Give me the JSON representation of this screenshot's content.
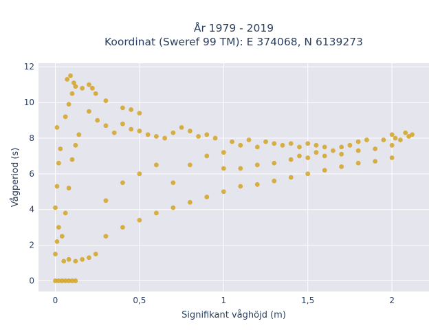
{
  "chart_data": {
    "type": "scatter",
    "title_line1": "År 1979 - 2019",
    "title_line2": "Koordinat (Sweref 99 TM): E 374068, N 6139273",
    "xlabel": "Signifikant våghöjd (m)",
    "ylabel": "Vågperiod (s)",
    "xlim": [
      -0.1,
      2.22
    ],
    "ylim": [
      -0.6,
      12.2
    ],
    "x_ticks": [
      0,
      0.5,
      1,
      1.5,
      2
    ],
    "x_tick_labels": [
      "0",
      "0,5",
      "1",
      "1,5",
      "2"
    ],
    "y_ticks": [
      0,
      2,
      4,
      6,
      8,
      10,
      12
    ],
    "y_tick_labels": [
      "0",
      "2",
      "4",
      "6",
      "8",
      "10",
      "12"
    ],
    "grid": true,
    "colors": {
      "marker": "#d4a321",
      "plot_bg": "#e5e5ee",
      "grid": "#ffffff",
      "text": "#2a3f5f"
    },
    "points": [
      [
        0.0,
        0.0
      ],
      [
        0.02,
        0.0
      ],
      [
        0.04,
        0.0
      ],
      [
        0.06,
        0.0
      ],
      [
        0.08,
        0.0
      ],
      [
        0.1,
        0.0
      ],
      [
        0.12,
        0.0
      ],
      [
        0.0,
        1.5
      ],
      [
        0.01,
        2.2
      ],
      [
        0.02,
        3.0
      ],
      [
        0.0,
        4.1
      ],
      [
        0.01,
        5.3
      ],
      [
        0.02,
        6.6
      ],
      [
        0.01,
        8.6
      ],
      [
        0.03,
        7.4
      ],
      [
        0.05,
        1.1
      ],
      [
        0.08,
        1.2
      ],
      [
        0.12,
        1.1
      ],
      [
        0.16,
        1.2
      ],
      [
        0.2,
        1.3
      ],
      [
        0.24,
        1.5
      ],
      [
        0.04,
        2.5
      ],
      [
        0.06,
        3.8
      ],
      [
        0.08,
        5.2
      ],
      [
        0.1,
        6.8
      ],
      [
        0.12,
        7.6
      ],
      [
        0.14,
        8.2
      ],
      [
        0.06,
        9.2
      ],
      [
        0.08,
        9.9
      ],
      [
        0.1,
        10.5
      ],
      [
        0.12,
        10.9
      ],
      [
        0.07,
        11.3
      ],
      [
        0.09,
        11.5
      ],
      [
        0.11,
        11.1
      ],
      [
        0.16,
        10.8
      ],
      [
        0.2,
        11.0
      ],
      [
        0.22,
        10.8
      ],
      [
        0.24,
        10.5
      ],
      [
        0.3,
        10.1
      ],
      [
        0.4,
        9.7
      ],
      [
        0.45,
        9.6
      ],
      [
        0.5,
        9.4
      ],
      [
        0.2,
        9.5
      ],
      [
        0.25,
        9.0
      ],
      [
        0.3,
        8.7
      ],
      [
        0.35,
        8.3
      ],
      [
        0.4,
        8.8
      ],
      [
        0.45,
        8.5
      ],
      [
        0.5,
        8.4
      ],
      [
        0.55,
        8.2
      ],
      [
        0.6,
        8.1
      ],
      [
        0.65,
        8.0
      ],
      [
        0.7,
        8.3
      ],
      [
        0.75,
        8.6
      ],
      [
        0.8,
        8.4
      ],
      [
        0.85,
        8.1
      ],
      [
        0.9,
        8.2
      ],
      [
        0.95,
        8.0
      ],
      [
        0.3,
        2.5
      ],
      [
        0.4,
        3.0
      ],
      [
        0.5,
        3.4
      ],
      [
        0.6,
        3.8
      ],
      [
        0.7,
        4.1
      ],
      [
        0.8,
        4.4
      ],
      [
        0.9,
        4.7
      ],
      [
        1.0,
        5.0
      ],
      [
        0.3,
        4.5
      ],
      [
        0.4,
        5.5
      ],
      [
        0.5,
        6.0
      ],
      [
        0.6,
        6.5
      ],
      [
        0.7,
        5.5
      ],
      [
        0.8,
        6.5
      ],
      [
        0.9,
        7.0
      ],
      [
        1.0,
        6.3
      ],
      [
        1.0,
        7.2
      ],
      [
        1.05,
        7.8
      ],
      [
        1.1,
        7.6
      ],
      [
        1.15,
        7.9
      ],
      [
        1.2,
        7.5
      ],
      [
        1.25,
        7.8
      ],
      [
        1.3,
        7.7
      ],
      [
        1.35,
        7.6
      ],
      [
        1.4,
        7.7
      ],
      [
        1.45,
        7.5
      ],
      [
        1.5,
        7.7
      ],
      [
        1.55,
        7.6
      ],
      [
        1.6,
        7.5
      ],
      [
        1.1,
        5.3
      ],
      [
        1.2,
        5.4
      ],
      [
        1.3,
        5.6
      ],
      [
        1.4,
        5.8
      ],
      [
        1.5,
        6.0
      ],
      [
        1.6,
        6.2
      ],
      [
        1.7,
        6.4
      ],
      [
        1.8,
        6.6
      ],
      [
        1.9,
        6.7
      ],
      [
        2.0,
        6.9
      ],
      [
        1.1,
        6.3
      ],
      [
        1.2,
        6.5
      ],
      [
        1.3,
        6.6
      ],
      [
        1.4,
        6.8
      ],
      [
        1.5,
        6.9
      ],
      [
        1.6,
        7.0
      ],
      [
        1.7,
        7.1
      ],
      [
        1.8,
        7.3
      ],
      [
        1.9,
        7.4
      ],
      [
        2.0,
        7.6
      ],
      [
        2.05,
        7.9
      ],
      [
        2.1,
        8.1
      ],
      [
        2.12,
        8.2
      ],
      [
        2.08,
        8.3
      ],
      [
        2.02,
        8.0
      ],
      [
        1.7,
        7.5
      ],
      [
        1.75,
        7.6
      ],
      [
        1.8,
        7.8
      ],
      [
        1.85,
        7.9
      ],
      [
        1.95,
        7.9
      ],
      [
        2.0,
        8.2
      ],
      [
        1.65,
        7.3
      ],
      [
        1.55,
        7.2
      ],
      [
        1.45,
        7.0
      ]
    ]
  }
}
